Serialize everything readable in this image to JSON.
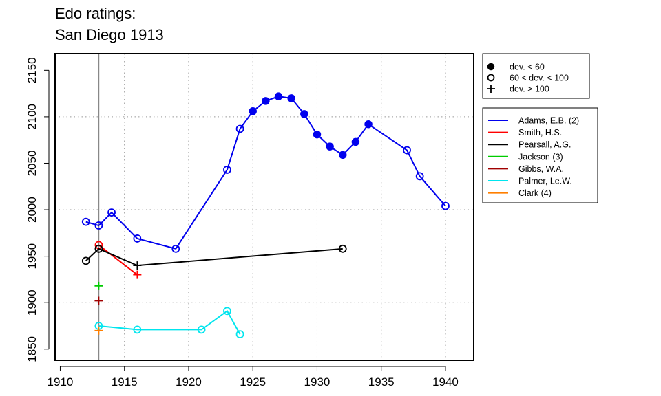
{
  "chart_data": {
    "type": "line",
    "title": [
      "Edo ratings:",
      "San Diego 1913"
    ],
    "xlabel": "",
    "ylabel": "",
    "xlim": [
      1909.6,
      1942.2
    ],
    "ylim": [
      1838,
      2168
    ],
    "x_ticks": [
      1910,
      1915,
      1920,
      1925,
      1930,
      1935,
      1940
    ],
    "y_ticks": [
      1850,
      1900,
      1950,
      2000,
      2050,
      2100,
      2150
    ],
    "x_grid": [
      1915,
      1920,
      1925,
      1930,
      1935,
      1940
    ],
    "y_grid": [
      1900,
      2000,
      2100
    ],
    "reference_line_x": 1913,
    "marker_legend": {
      "position": "top-right",
      "items": [
        {
          "symbol": "filled",
          "label": "dev. < 60"
        },
        {
          "symbol": "open",
          "label": "60 < dev. < 100"
        },
        {
          "symbol": "plus",
          "label": "dev. > 100"
        }
      ]
    },
    "series": [
      {
        "name": "Adams, E.B. (2)",
        "color": "#0000ee",
        "points": [
          [
            1912,
            1987,
            "open"
          ],
          [
            1913,
            1983,
            "open"
          ],
          [
            1914,
            1997,
            "open"
          ],
          [
            1916,
            1969,
            "open"
          ],
          [
            1919,
            1958,
            "open"
          ],
          [
            1923,
            2043,
            "open"
          ],
          [
            1924,
            2087,
            "open"
          ],
          [
            1925,
            2106,
            "filled"
          ],
          [
            1926,
            2117,
            "filled"
          ],
          [
            1927,
            2122,
            "filled"
          ],
          [
            1928,
            2120,
            "filled"
          ],
          [
            1929,
            2103,
            "filled"
          ],
          [
            1930,
            2081,
            "filled"
          ],
          [
            1931,
            2068,
            "filled"
          ],
          [
            1932,
            2059,
            "filled"
          ],
          [
            1933,
            2073,
            "filled"
          ],
          [
            1934,
            2092,
            "filled"
          ],
          [
            1937,
            2064,
            "open"
          ],
          [
            1938,
            2036,
            "open"
          ],
          [
            1940,
            2004,
            "open"
          ]
        ]
      },
      {
        "name": "Smith, H.S.",
        "color": "#ff0000",
        "points": [
          [
            1913,
            1962,
            "open"
          ],
          [
            1916,
            1930,
            "plus"
          ]
        ]
      },
      {
        "name": "Pearsall, A.G.",
        "color": "#000000",
        "points": [
          [
            1912,
            1945,
            "open"
          ],
          [
            1913,
            1958,
            "open"
          ],
          [
            1916,
            1940,
            "plus"
          ],
          [
            1932,
            1958,
            "open"
          ]
        ]
      },
      {
        "name": "Jackson (3)",
        "color": "#00cc00",
        "points": [
          [
            1913,
            1918,
            "plus"
          ]
        ]
      },
      {
        "name": "Gibbs, W.A.",
        "color": "#a00000",
        "points": [
          [
            1913,
            1902,
            "plus"
          ]
        ]
      },
      {
        "name": "Palmer, Le.W.",
        "color": "#00e5ee",
        "points": [
          [
            1913,
            1875,
            "open"
          ],
          [
            1916,
            1871,
            "open"
          ],
          [
            1921,
            1871,
            "open"
          ],
          [
            1923,
            1891,
            "open"
          ],
          [
            1924,
            1866,
            "open"
          ]
        ]
      },
      {
        "name": "Clark (4)",
        "color": "#ff7f00",
        "points": [
          [
            1913,
            1870,
            "plus"
          ]
        ]
      }
    ]
  }
}
